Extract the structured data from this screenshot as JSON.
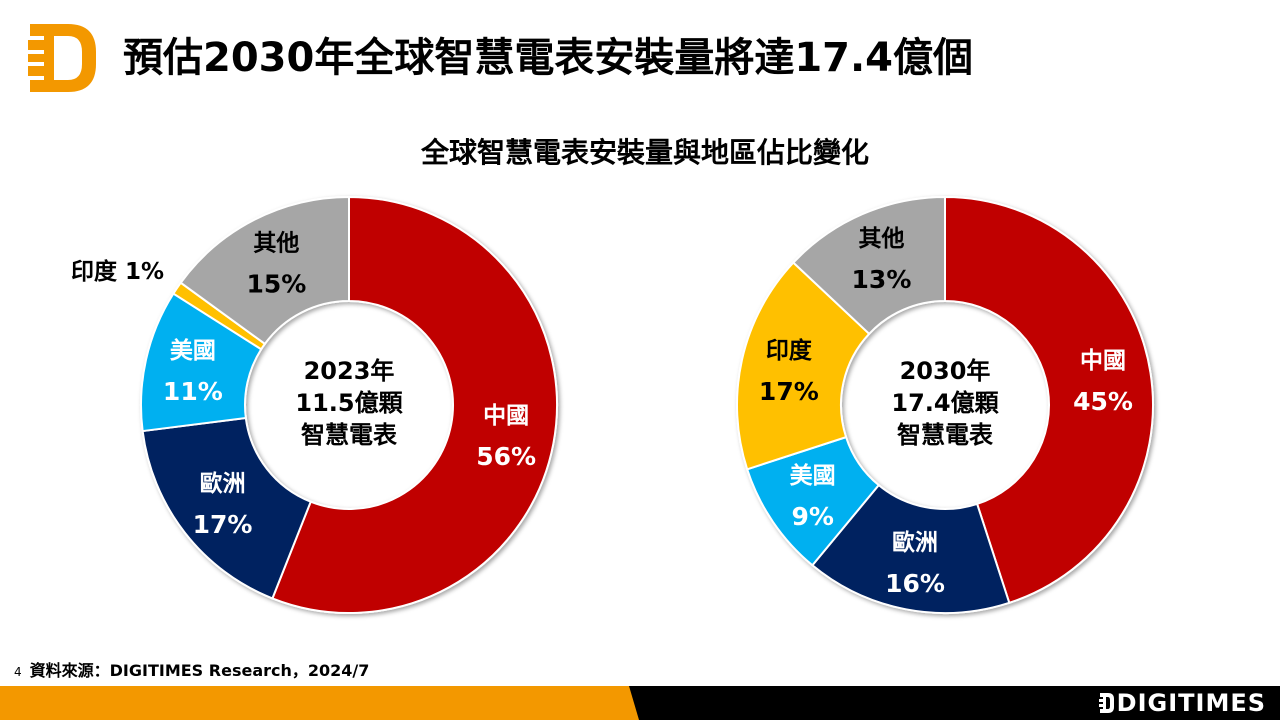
{
  "header": {
    "logo": "digitimes-d-logo-icon",
    "title": "預估2030年全球智慧電表安裝量將達17.4億個"
  },
  "colors": {
    "brand_orange": "#F39800",
    "china": "#C00000",
    "europe": "#002060",
    "usa": "#00B0F0",
    "india": "#FFC000",
    "other": "#A6A6A6",
    "bottom_bar_dark": "#000000"
  },
  "chart_data": [
    {
      "type": "pie",
      "variant": "donut",
      "title": "全球智慧電表安裝量與地區佔比變化",
      "center_label": [
        "2023年",
        "11.5億顆",
        "智慧電表"
      ],
      "total": "11.5億顆",
      "year": "2023",
      "unit": "%",
      "start": "12 o'clock, clockwise",
      "categories": [
        "中國",
        "歐洲",
        "美國",
        "印度",
        "其他"
      ],
      "values": [
        56,
        17,
        11,
        1,
        15
      ],
      "labels": [
        "56%",
        "17%",
        "11%",
        "1%",
        "15%"
      ],
      "colors": [
        "#C00000",
        "#002060",
        "#00B0F0",
        "#FFC000",
        "#A6A6A6"
      ]
    },
    {
      "type": "pie",
      "variant": "donut",
      "title": "全球智慧電表安裝量與地區佔比變化",
      "center_label": [
        "2030年",
        "17.4億顆",
        "智慧電表"
      ],
      "total": "17.4億顆",
      "year": "2030",
      "unit": "%",
      "start": "12 o'clock, clockwise",
      "categories": [
        "中國",
        "歐洲",
        "美國",
        "印度",
        "其他"
      ],
      "values": [
        45,
        16,
        9,
        17,
        13
      ],
      "labels": [
        "45%",
        "16%",
        "9%",
        "17%",
        "13%"
      ],
      "colors": [
        "#C00000",
        "#002060",
        "#00B0F0",
        "#FFC000",
        "#A6A6A6"
      ]
    }
  ],
  "chart_title": "全球智慧電表安裝量與地區佔比變化",
  "footer": {
    "page_number": "4",
    "source": "資料來源：DIGITIMES Research，2024/7",
    "brand": "DIGITIMES"
  }
}
